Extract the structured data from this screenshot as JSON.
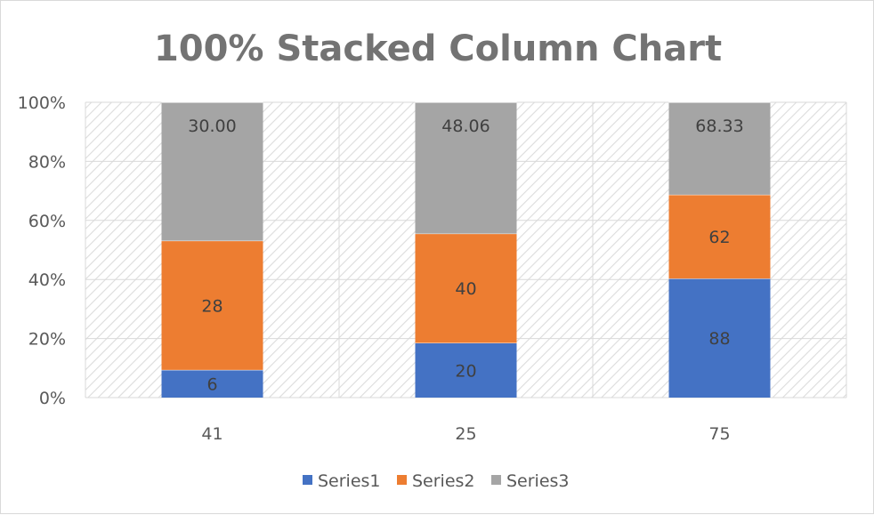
{
  "chart_data": {
    "type": "bar",
    "stacking": "percent",
    "title": "100% Stacked Column Chart",
    "categories": [
      "41",
      "25",
      "75"
    ],
    "series": [
      {
        "name": "Series1",
        "color": "#4472c4",
        "values": [
          6,
          20,
          88
        ],
        "labels": [
          "6",
          "20",
          "88"
        ]
      },
      {
        "name": "Series2",
        "color": "#ed7d31",
        "values": [
          28,
          40,
          62
        ],
        "labels": [
          "28",
          "40",
          "62"
        ]
      },
      {
        "name": "Series3",
        "color": "#a5a5a5",
        "values": [
          30.0,
          48.06,
          68.33
        ],
        "labels": [
          "30.00",
          "48.06",
          "68.33"
        ]
      }
    ],
    "y_ticks": [
      "0%",
      "20%",
      "40%",
      "60%",
      "80%",
      "100%"
    ],
    "ylim": [
      0,
      100
    ],
    "xlabel": "",
    "ylabel": "",
    "grid": true,
    "plot_background": "diagonal-hatch",
    "legend_position": "bottom"
  }
}
